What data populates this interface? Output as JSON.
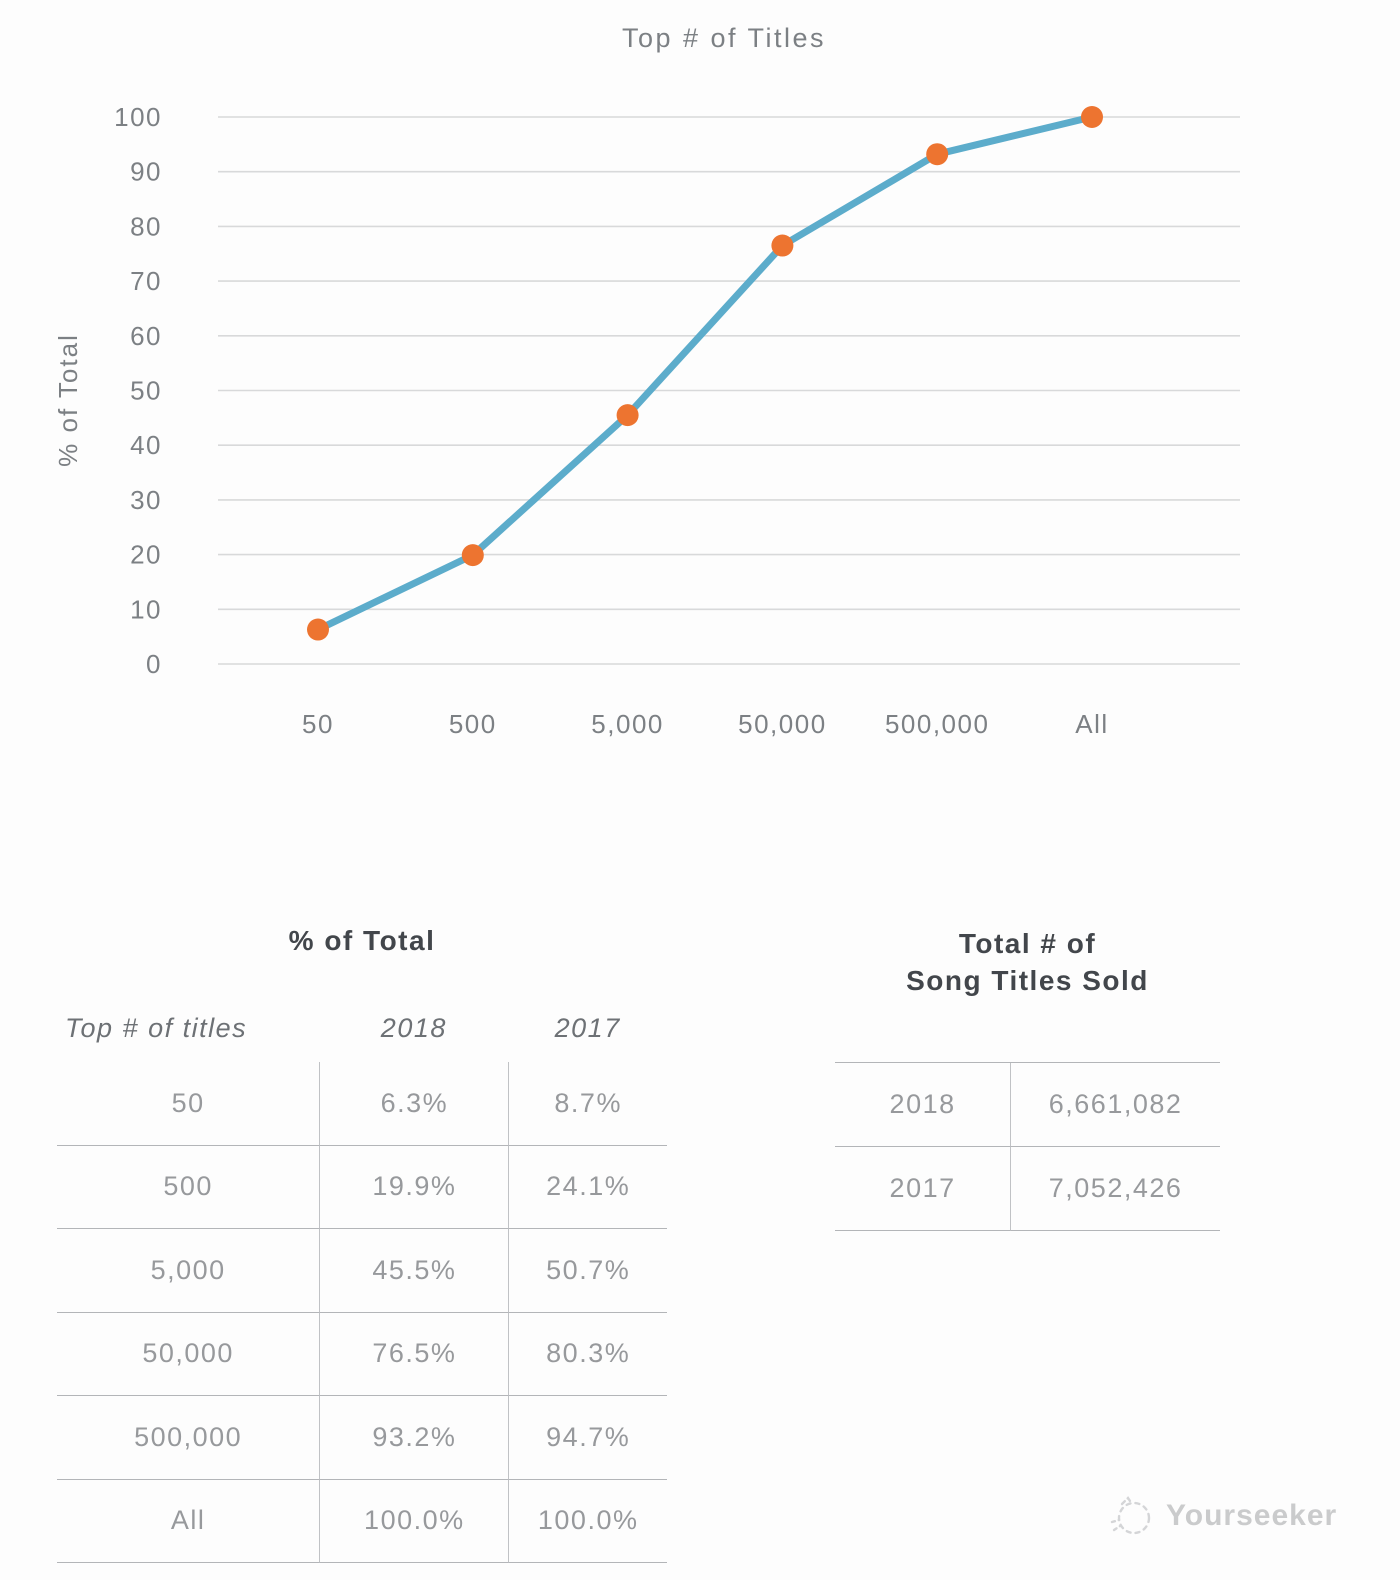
{
  "chart_data": {
    "type": "line",
    "title": "Top # of Titles",
    "ylabel": "% of Total",
    "xlabel": "",
    "categories": [
      "50",
      "500",
      "5,000",
      "50,000",
      "500,000",
      "All"
    ],
    "series": [
      {
        "name": "2018",
        "values": [
          6.3,
          19.9,
          45.5,
          76.5,
          93.2,
          100.0
        ]
      }
    ],
    "ylim": [
      0,
      100
    ],
    "yticks": [
      0,
      10,
      20,
      30,
      40,
      50,
      60,
      70,
      80,
      90,
      100
    ],
    "grid": true,
    "legend": false,
    "line_color": "#5CACCB",
    "marker_color": "#ED7430"
  },
  "tables": {
    "percent_of_total": {
      "title": "% of Total",
      "columns": [
        "Top # of titles",
        "2018",
        "2017"
      ],
      "rows": [
        {
          "titles": "50",
          "y2018": "6.3%",
          "y2017": "8.7%"
        },
        {
          "titles": "500",
          "y2018": "19.9%",
          "y2017": "24.1%"
        },
        {
          "titles": "5,000",
          "y2018": "45.5%",
          "y2017": "50.7%"
        },
        {
          "titles": "50,000",
          "y2018": "76.5%",
          "y2017": "80.3%"
        },
        {
          "titles": "500,000",
          "y2018": "93.2%",
          "y2017": "94.7%"
        },
        {
          "titles": "All",
          "y2018": "100.0%",
          "y2017": "100.0%"
        }
      ]
    },
    "song_titles_sold": {
      "title_line1": "Total # of",
      "title_line2": "Song Titles Sold",
      "rows": [
        {
          "year": "2018",
          "total": "6,661,082"
        },
        {
          "year": "2017",
          "total": "7,052,426"
        }
      ]
    }
  },
  "watermark": {
    "text": "Yourseeker"
  }
}
